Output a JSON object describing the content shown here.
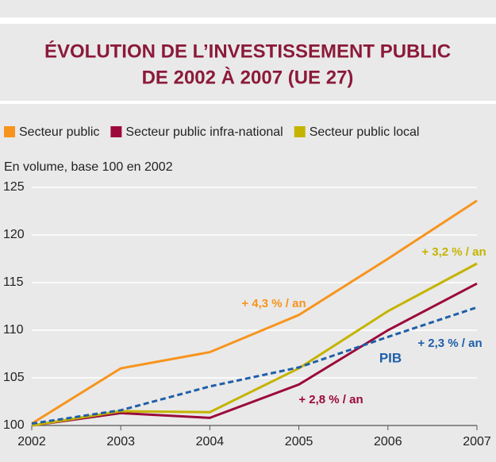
{
  "chart_data": {
    "type": "line",
    "title": [
      "ÉVOLUTION DE L’INVESTISSEMENT PUBLIC",
      "DE 2002 À 2007 (UE 27)"
    ],
    "subtitle": "En volume, base 100 en 2002",
    "categories": [
      "2002",
      "2003",
      "2004",
      "2005",
      "2006",
      "2007"
    ],
    "series": [
      {
        "name": "Secteur public",
        "color": "#f7941d",
        "values": [
          100.2,
          106,
          107.7,
          111.6,
          117.5,
          123.6
        ]
      },
      {
        "name": "Secteur public infra-national",
        "color": "#9b0a3a",
        "values": [
          100,
          101.3,
          100.8,
          104.3,
          110,
          114.9
        ]
      },
      {
        "name": "Secteur public local",
        "color": "#c4b400",
        "values": [
          100,
          101.5,
          101.4,
          106,
          112,
          117
        ]
      },
      {
        "name": "PIB",
        "color": "#1f5fa8",
        "dashed": true,
        "legend": false,
        "values": [
          100.2,
          101.6,
          104.1,
          106.1,
          109.3,
          112.4
        ]
      }
    ],
    "annotations": [
      {
        "text": "+ 4,3 % / an",
        "color": "#f7941d"
      },
      {
        "text": "+ 3,2 % / an",
        "color": "#c4b400"
      },
      {
        "text": "+ 2,3 % / an",
        "color": "#1f5fa8"
      },
      {
        "text": "PIB",
        "color": "#1f5fa8"
      },
      {
        "text": "+ 2,8 % / an",
        "color": "#9b0a3a"
      }
    ],
    "ylim": [
      100,
      125
    ],
    "yticks": [
      100,
      105,
      110,
      115,
      120,
      125
    ],
    "grid": true
  }
}
